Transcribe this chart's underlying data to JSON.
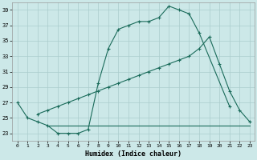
{
  "xlabel": "Humidex (Indice chaleur)",
  "bg_color": "#cce8e8",
  "grid_color": "#aacccc",
  "line_color": "#1a6b5a",
  "line1_x": [
    0,
    1,
    2,
    3,
    4,
    5,
    6,
    7,
    8,
    9,
    10,
    11,
    12,
    13,
    14,
    15,
    16,
    17,
    18,
    21
  ],
  "line1_y": [
    27,
    25,
    24.5,
    24,
    23,
    23,
    23,
    23.5,
    29.5,
    34,
    36.5,
    37,
    37.5,
    37.5,
    38,
    39.5,
    39,
    38.5,
    36,
    26.5
  ],
  "line2_x": [
    2,
    3,
    4,
    5,
    6,
    7,
    8,
    9,
    10,
    11,
    12,
    13,
    14,
    15,
    16,
    17,
    18,
    19,
    20,
    21,
    22,
    23
  ],
  "line2_y": [
    25.5,
    26,
    26.5,
    27,
    27.5,
    28,
    28.5,
    29,
    29.5,
    30,
    30.5,
    31,
    31.5,
    32,
    32.5,
    33,
    34,
    35.5,
    32,
    28.5,
    26,
    24.5
  ],
  "line3_x": [
    3,
    4,
    5,
    6,
    7,
    8,
    9,
    10,
    11,
    12,
    13,
    14,
    15,
    16,
    17,
    18,
    19,
    20,
    21,
    22,
    23
  ],
  "line3_y": [
    24,
    24,
    24,
    24,
    24,
    24,
    24,
    24,
    24,
    24,
    24,
    24,
    24,
    24,
    24,
    24,
    24,
    24,
    24,
    24,
    24
  ],
  "ylim": [
    22,
    40
  ],
  "xlim": [
    -0.5,
    23.5
  ],
  "yticks": [
    23,
    25,
    27,
    29,
    31,
    33,
    35,
    37,
    39
  ],
  "xticks": [
    0,
    1,
    2,
    3,
    4,
    5,
    6,
    7,
    8,
    9,
    10,
    11,
    12,
    13,
    14,
    15,
    16,
    17,
    18,
    19,
    20,
    21,
    22,
    23
  ]
}
